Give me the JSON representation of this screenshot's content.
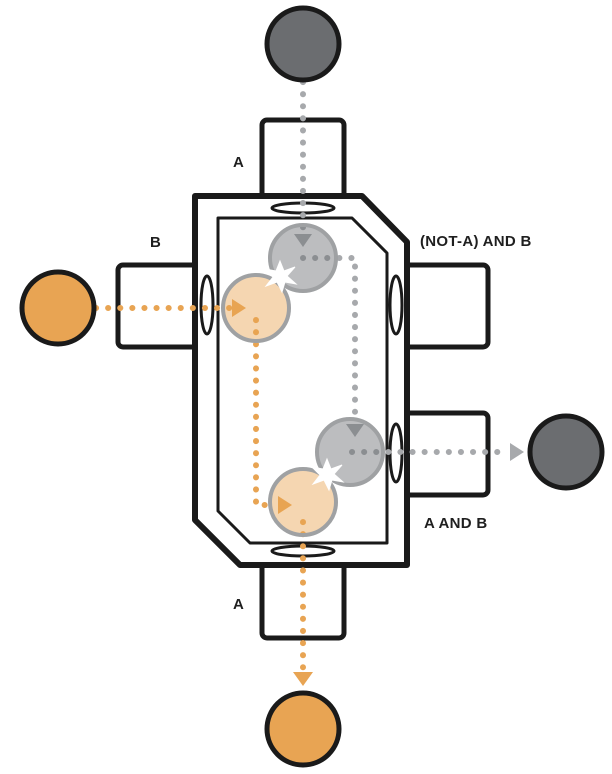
{
  "labels": {
    "input_a_top": "A",
    "input_b_left": "B",
    "output_not_a_and_b": "(NOT-A) AND B",
    "output_a_and_b": "A AND B",
    "output_a_bottom": "A"
  },
  "colors": {
    "outline": "#1a1a1a",
    "gray_ball": "#6b6d70",
    "gray_ball_light": "#b9babc",
    "gray_path": "#a7a9ac",
    "orange_ball": "#e8a453",
    "orange_ball_light": "#f3cd9c",
    "orange_path": "#e8a453",
    "collision": "#ffffff"
  },
  "icons": {
    "gray_ball_top": "gray-ball",
    "orange_ball_left": "orange-ball",
    "gray_ball_right": "gray-ball",
    "orange_ball_bottom": "orange-ball",
    "collision_upper": "collision-star",
    "collision_lower": "collision-star"
  }
}
